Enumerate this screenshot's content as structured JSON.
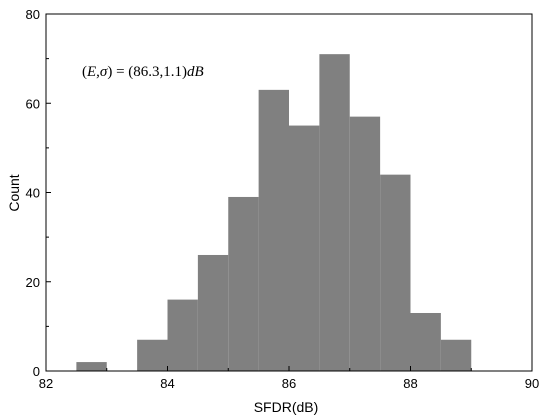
{
  "chart_data": {
    "type": "bar",
    "subtype": "histogram",
    "xlabel": "SFDR(dB)",
    "ylabel": "Count",
    "xlim": [
      82,
      90
    ],
    "ylim": [
      0,
      80
    ],
    "xticks": [
      82,
      84,
      86,
      88,
      90
    ],
    "yticks": [
      0,
      20,
      40,
      60,
      80
    ],
    "bar_color": "#808080",
    "annotation": "(E,σ) = (86.3,1.1)dB",
    "bins": [
      {
        "start": 82.5,
        "end": 83.0,
        "count": 2
      },
      {
        "start": 83.0,
        "end": 83.5,
        "count": 0
      },
      {
        "start": 83.5,
        "end": 84.0,
        "count": 7
      },
      {
        "start": 84.0,
        "end": 84.5,
        "count": 16
      },
      {
        "start": 84.5,
        "end": 85.0,
        "count": 26
      },
      {
        "start": 85.0,
        "end": 85.5,
        "count": 39
      },
      {
        "start": 85.5,
        "end": 86.0,
        "count": 63
      },
      {
        "start": 86.0,
        "end": 86.5,
        "count": 55
      },
      {
        "start": 86.5,
        "end": 87.0,
        "count": 71
      },
      {
        "start": 87.0,
        "end": 87.5,
        "count": 57
      },
      {
        "start": 87.5,
        "end": 88.0,
        "count": 44
      },
      {
        "start": 88.0,
        "end": 88.5,
        "count": 13
      },
      {
        "start": 88.5,
        "end": 89.0,
        "count": 7
      }
    ]
  }
}
